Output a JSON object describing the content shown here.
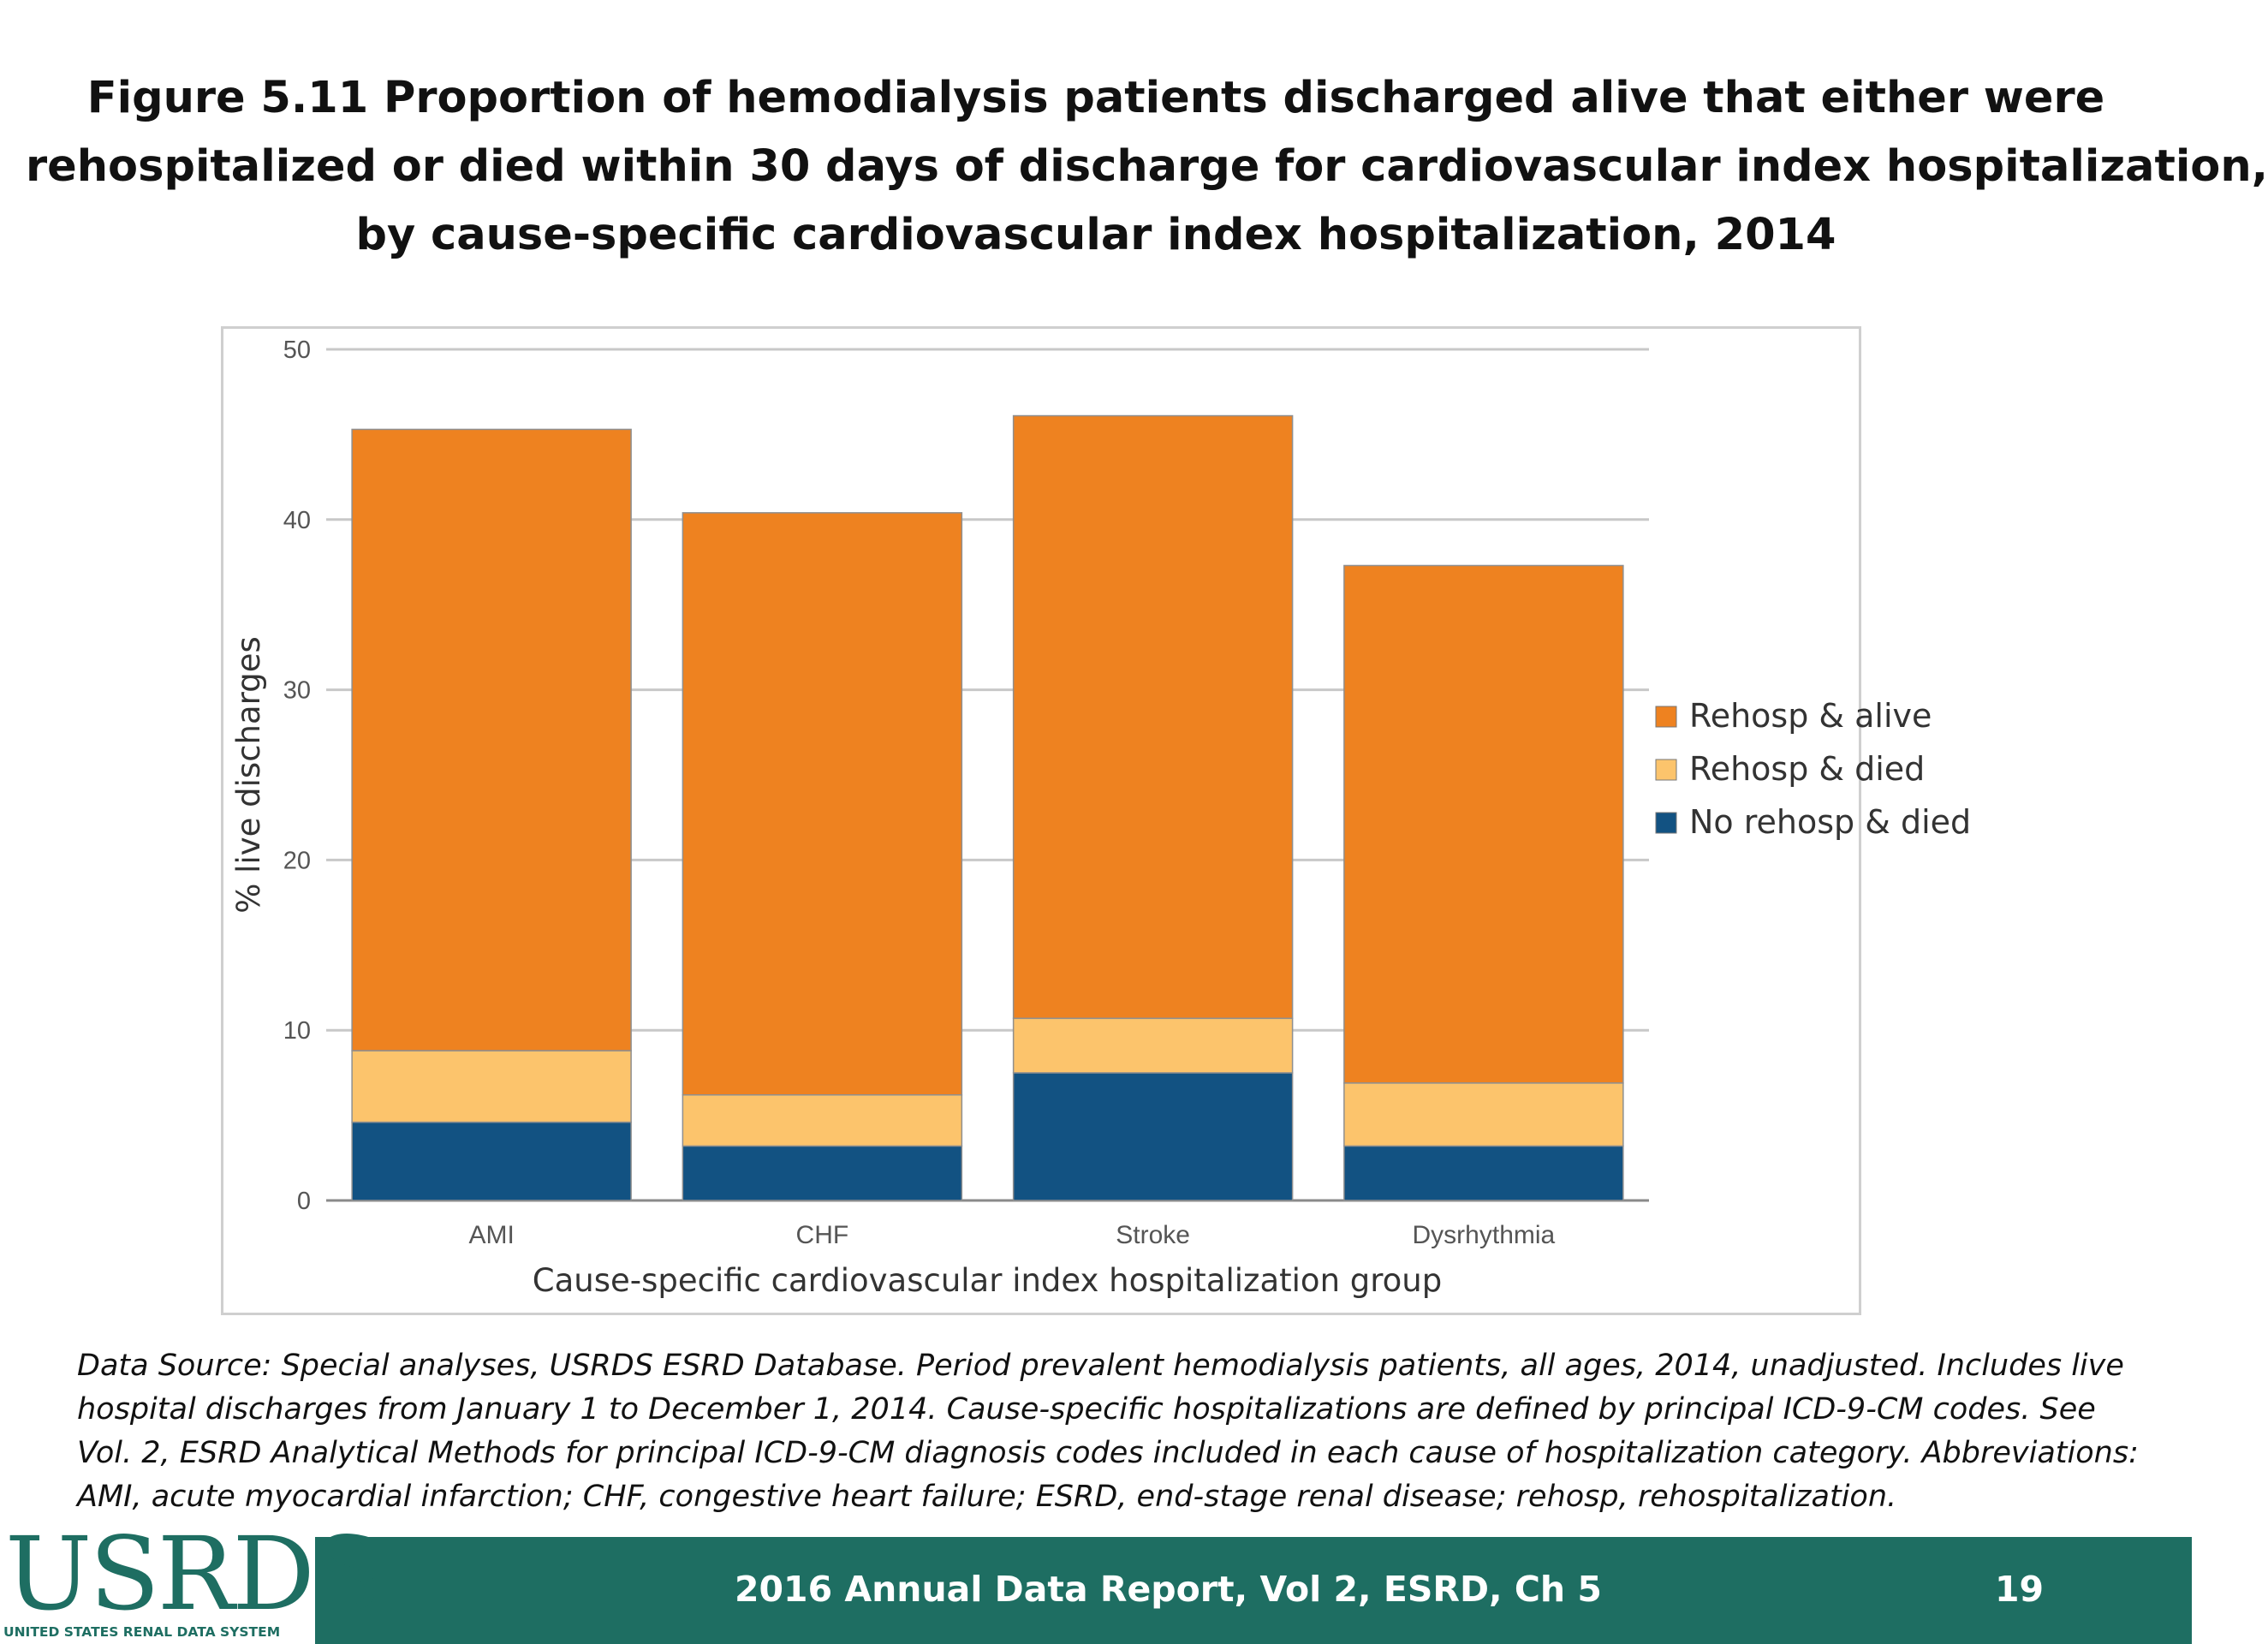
{
  "title": {
    "line1": "Figure 5.11 Proportion of hemodialysis patients discharged alive that either were",
    "line2": "rehospitalized or died within 30 days of discharge for cardiovascular index hospitalization,",
    "line3": "by cause-specific cardiovascular index hospitalization, 2014"
  },
  "chart_data": {
    "type": "bar",
    "stacked": true,
    "categories": [
      "AMI",
      "CHF",
      "Stroke",
      "Dysrhythmia"
    ],
    "series": [
      {
        "name": "No rehosp & died",
        "color": "#125282",
        "values": [
          4.6,
          3.2,
          7.5,
          3.2
        ]
      },
      {
        "name": "Rehosp & died",
        "color": "#fcc46c",
        "values": [
          4.2,
          3.0,
          3.2,
          3.7
        ]
      },
      {
        "name": "Rehosp & alive",
        "color": "#ee8220",
        "values": [
          36.5,
          34.2,
          35.4,
          30.4
        ]
      }
    ],
    "legend_order": [
      "Rehosp & alive",
      "Rehosp & died",
      "No rehosp & died"
    ],
    "xlabel": "Cause-specific cardiovascular index hospitalization group",
    "ylabel": "% live discharges",
    "ylim": [
      0,
      50
    ],
    "yticks": [
      "0",
      "10",
      "20",
      "30",
      "40",
      "50"
    ],
    "grid": true,
    "legend_position": "right"
  },
  "footnote": {
    "line1": "Data Source: Special analyses, USRDS ESRD Database. Period prevalent hemodialysis patients, all ages, 2014, unadjusted. Includes live",
    "line2": "hospital discharges from January 1 to December 1, 2014. Cause-specific hospitalizations are defined by principal ICD-9-CM codes. See",
    "line3": "Vol. 2, ESRD Analytical Methods for principal ICD-9-CM diagnosis codes included in each cause of hospitalization category. Abbreviations:",
    "line4": "AMI, acute myocardial infarction; CHF, congestive heart failure; ESRD, end-stage renal disease; rehosp, rehospitalization."
  },
  "footer": {
    "logo": "USRDS",
    "logo_subtitle": "UNITED STATES RENAL DATA SYSTEM",
    "report": "2016 Annual Data Report, Vol 2, ESRD, Ch 5",
    "page": "19",
    "bar_color": "#1e6e62"
  }
}
